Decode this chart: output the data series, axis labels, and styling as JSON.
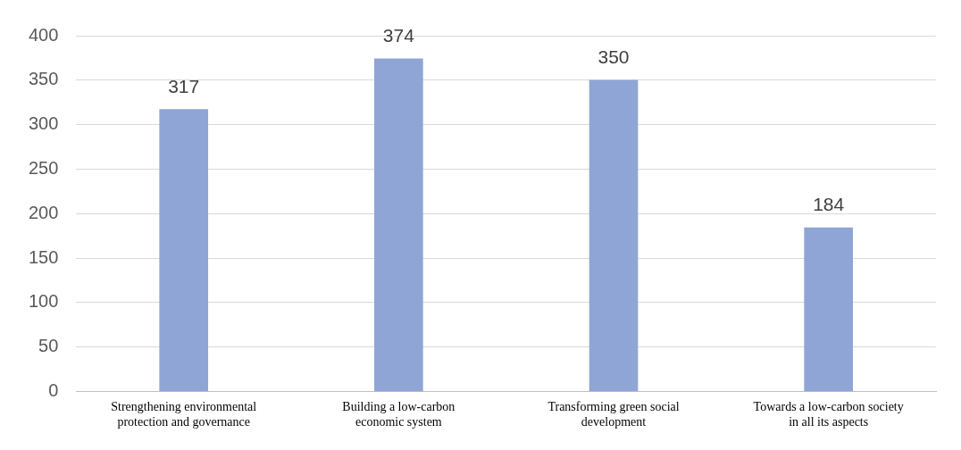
{
  "chart_data": {
    "type": "bar",
    "categories": [
      "Strengthening environmental\nprotection and governance",
      "Building a low-carbon\neconomic system",
      "Transforming green social\ndevelopment",
      "Towards a low-carbon society\nin all its aspects"
    ],
    "values": [
      317,
      374,
      350,
      184
    ],
    "color": "#8fa5d6",
    "ylim": [
      0,
      400
    ],
    "yticks": [
      0,
      50,
      100,
      150,
      200,
      250,
      300,
      350,
      400
    ],
    "grid": "y",
    "data_labels": true
  }
}
